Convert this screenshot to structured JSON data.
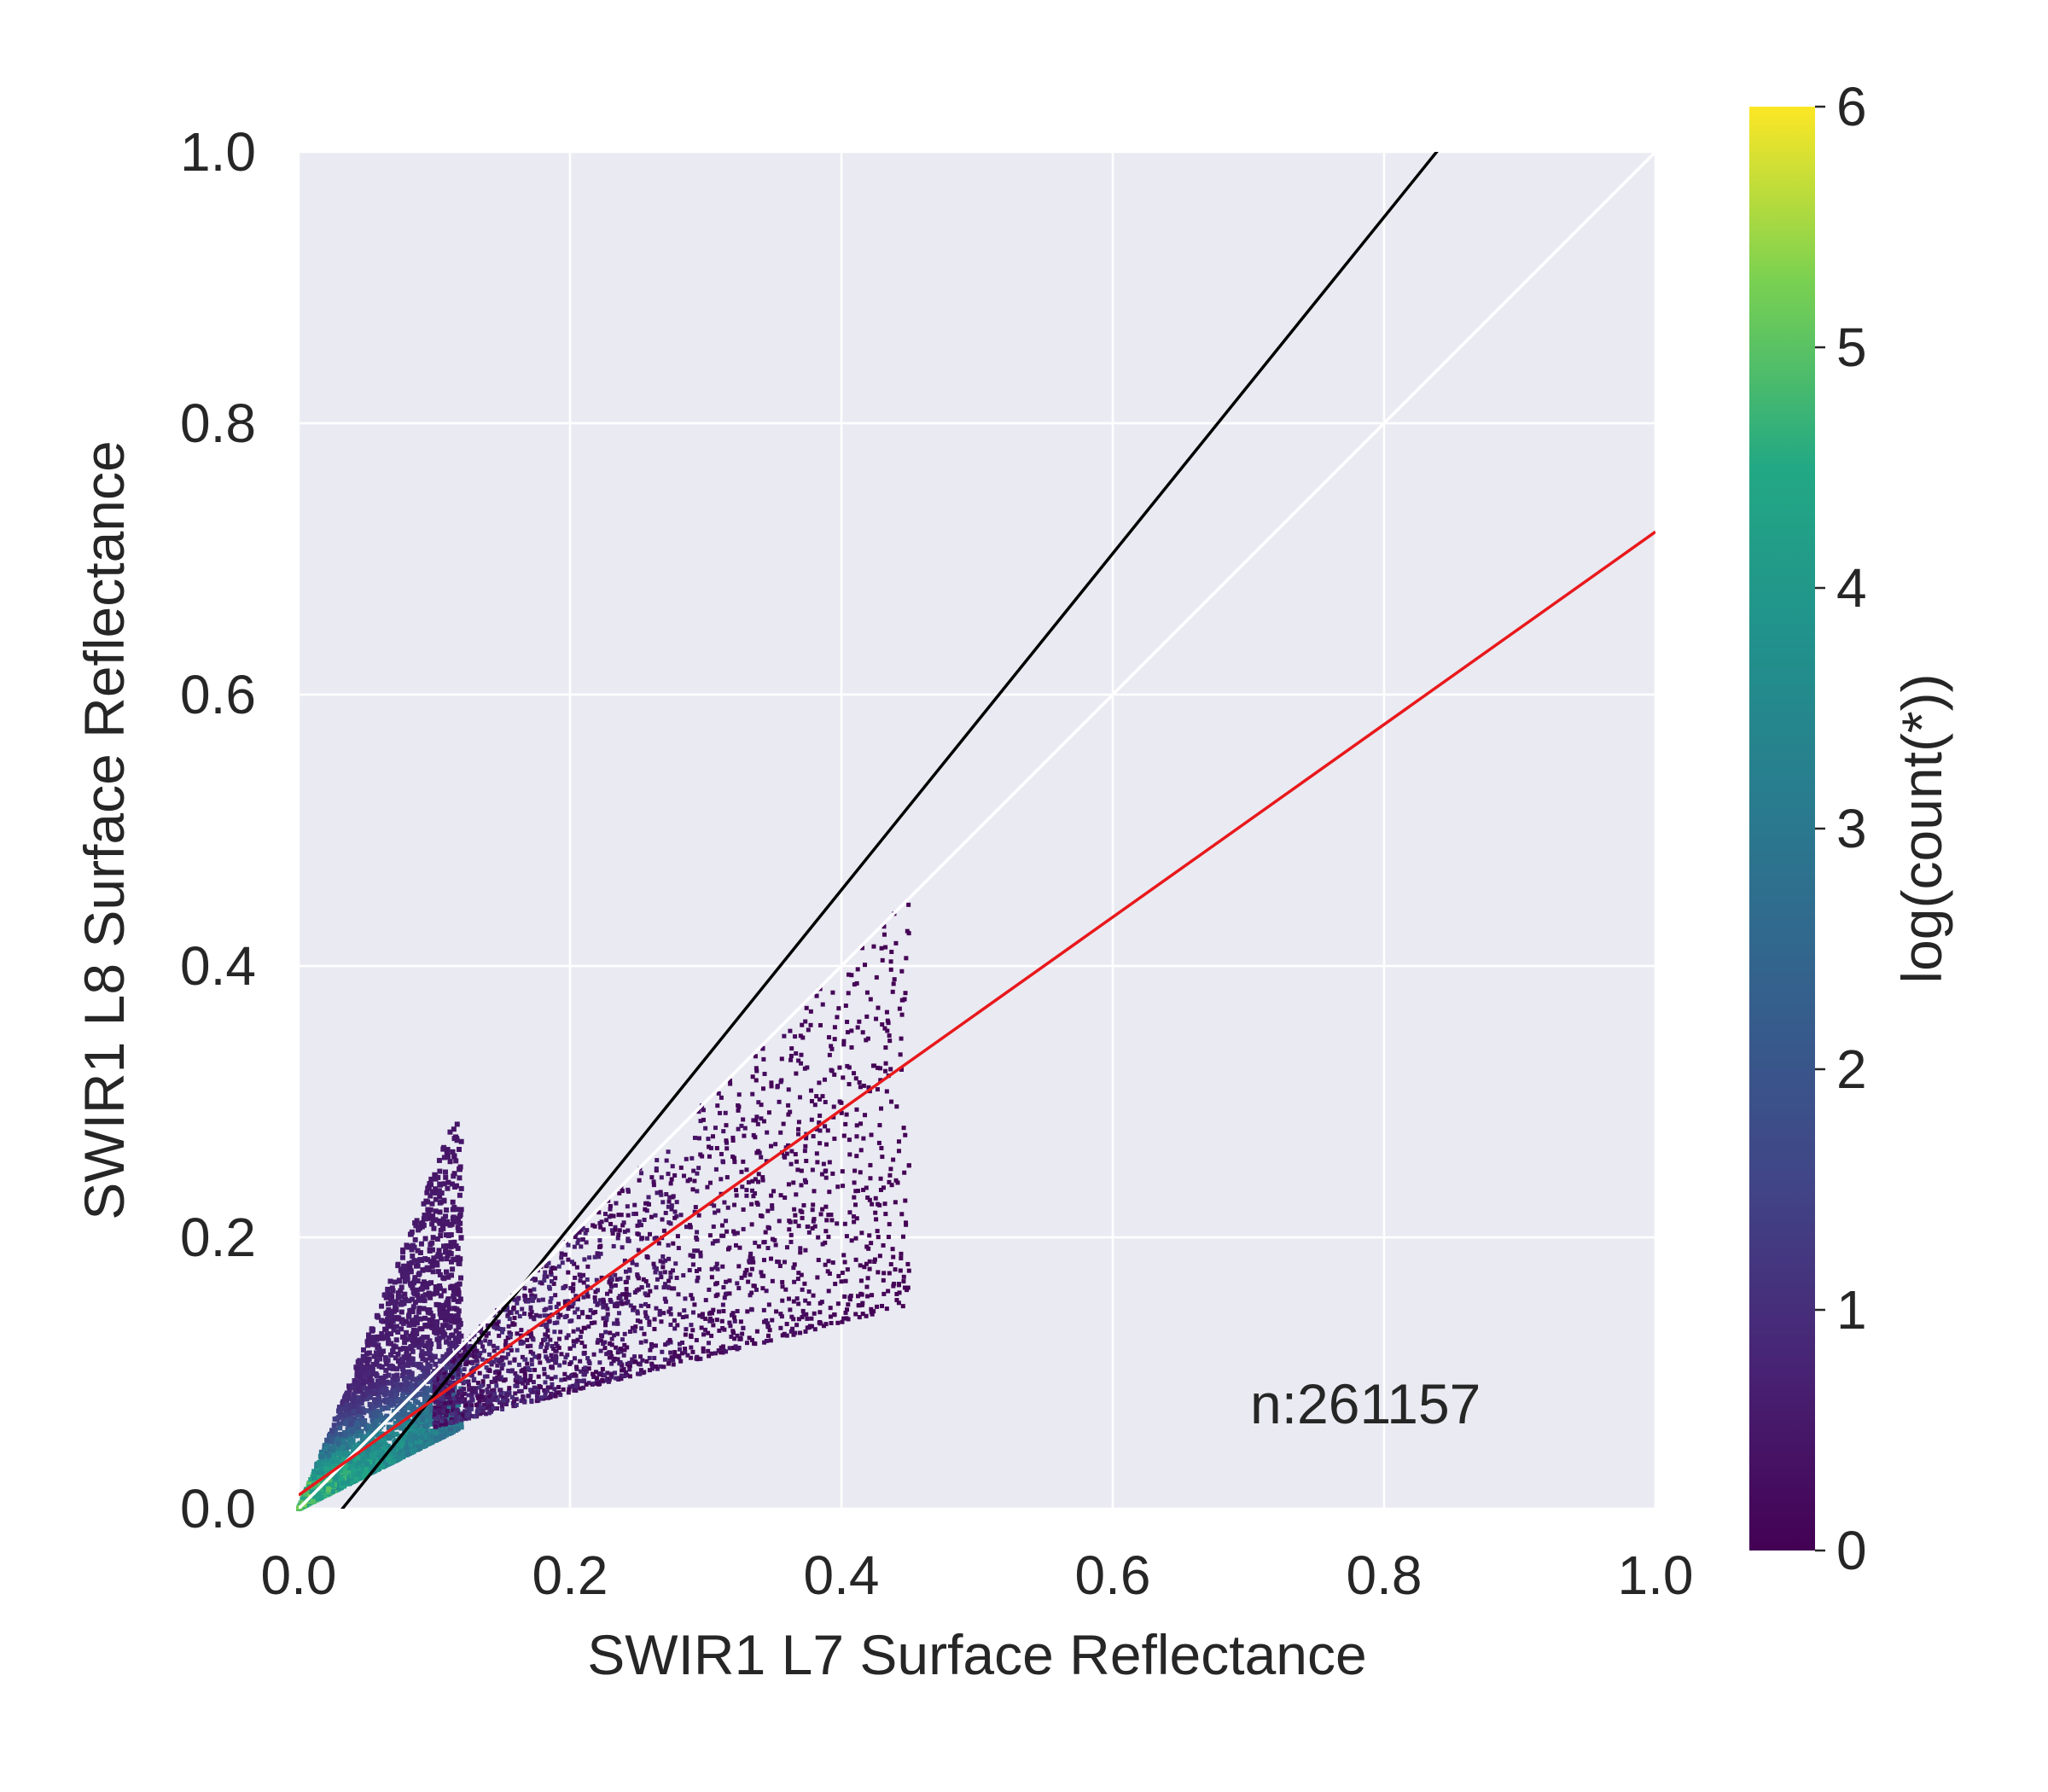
{
  "chart_data": {
    "type": "heatmap",
    "subtype": "hexbin-density-scatter",
    "xlabel": "SWIR1 L7 Surface Reflectance",
    "ylabel": "SWIR1 L8 Surface Reflectance",
    "xlim": [
      0.0,
      1.0
    ],
    "ylim": [
      0.0,
      1.0
    ],
    "x_ticks": [
      "0.0",
      "0.2",
      "0.4",
      "0.6",
      "0.8",
      "1.0"
    ],
    "y_ticks": [
      "0.0",
      "0.2",
      "0.4",
      "0.6",
      "0.8",
      "1.0"
    ],
    "grid": true,
    "colorbar": {
      "label": "log(count(*))",
      "ticks": [
        "0",
        "1",
        "2",
        "3",
        "4",
        "5",
        "6"
      ],
      "range": [
        0,
        6
      ],
      "colormap": "viridis"
    },
    "annotation": "n:261157",
    "lines": [
      {
        "color": "#000000",
        "x": [
          0.0,
          1.0
        ],
        "y": [
          -0.04,
          1.2
        ]
      },
      {
        "color": "#ffffff",
        "x": [
          0.0,
          1.0
        ],
        "y": [
          0.0,
          1.0
        ]
      },
      {
        "color": "#e8191c",
        "x": [
          0.0,
          1.0
        ],
        "y": [
          0.01,
          0.72
        ]
      }
    ],
    "density_clusters": [
      {
        "x": [
          0.0,
          0.12
        ],
        "y_low": [
          0.0,
          0.06
        ],
        "y_high": [
          0.0,
          0.3
        ],
        "peak": 5.5
      },
      {
        "x": [
          0.1,
          0.45
        ],
        "y_low": [
          0.06,
          0.15
        ],
        "y_high": [
          0.1,
          0.45
        ],
        "peak": 1.2
      }
    ]
  },
  "colors": {
    "plot_background": "#eaeaf2",
    "grid": "#ffffff",
    "text": "#262626"
  }
}
